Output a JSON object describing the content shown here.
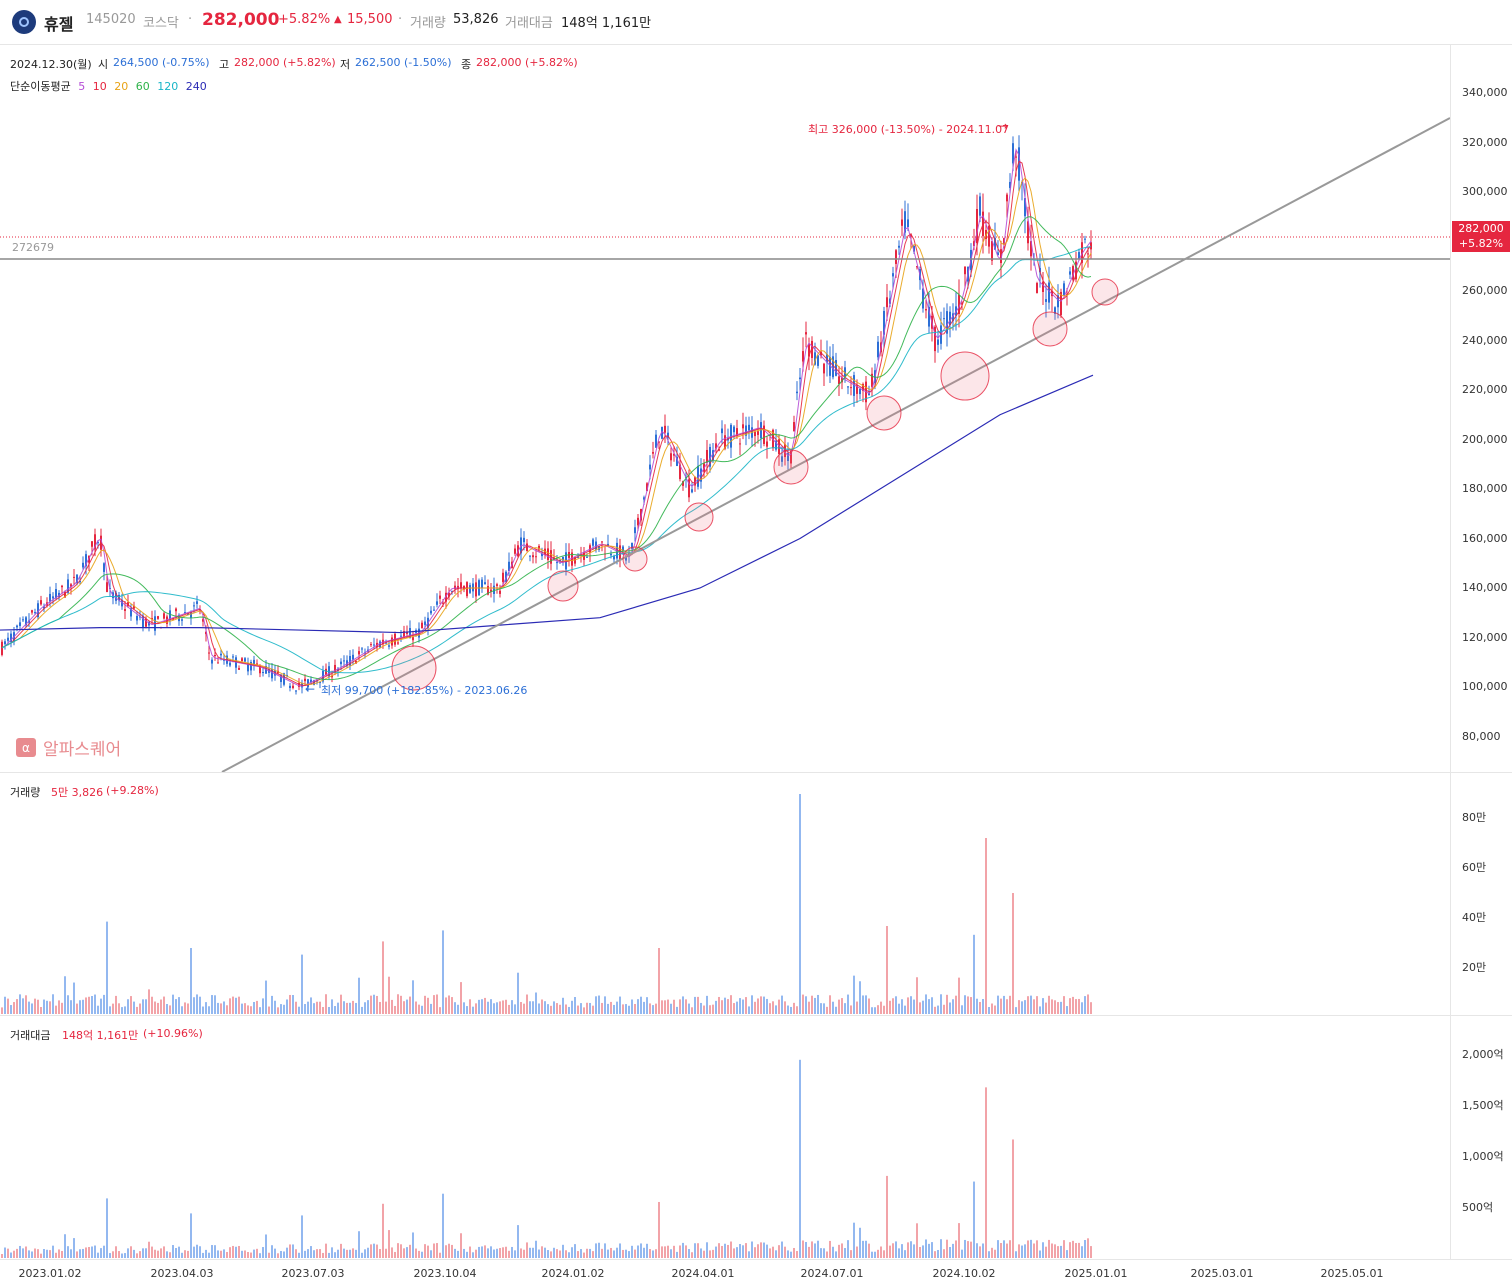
{
  "header": {
    "name": "휴젤",
    "code": "145020",
    "market": "코스닥",
    "price": "282,000",
    "change_pct": "+5.82%",
    "change_abs": "15,500",
    "volume_label": "거래량",
    "volume": "53,826",
    "amount_label": "거래대금",
    "amount": "148억 1,161만"
  },
  "ohlc": {
    "date": "2024.12.30(월)",
    "open_label": "시",
    "open": "264,500 (-0.75%)",
    "high_label": "고",
    "high": "282,000 (+5.82%)",
    "low_label": "저",
    "low": "262,500 (-1.50%)",
    "close_label": "종",
    "close": "282,000 (+5.82%)"
  },
  "ma_legend": {
    "label": "단순이동평균",
    "periods": [
      {
        "text": "5",
        "color": "#b54cd6"
      },
      {
        "text": "10",
        "color": "#e5263f"
      },
      {
        "text": "20",
        "color": "#e8a317"
      },
      {
        "text": "60",
        "color": "#2fb34a"
      },
      {
        "text": "120",
        "color": "#19b5c7"
      },
      {
        "text": "240",
        "color": "#2b2bb5"
      }
    ]
  },
  "annotations": {
    "high": "최고 326,000 (-13.50%) - 2024.11.07",
    "low": "최저 99,700 (+182.85%) - 2023.06.26",
    "level_line": "272679",
    "watermark": "알파스퀘어",
    "current_price_tag": "282,000",
    "current_change_tag": "+5.82%"
  },
  "price_axis": [
    "340,000",
    "320,000",
    "300,000",
    "280,000",
    "260,000",
    "240,000",
    "220,000",
    "200,000",
    "180,000",
    "160,000",
    "140,000",
    "120,000",
    "100,000",
    "80,000"
  ],
  "volume_panel": {
    "label": "거래량",
    "value": "5만 3,826",
    "change": "(+9.28%)",
    "axis": [
      "80만",
      "60만",
      "40만",
      "20만"
    ]
  },
  "amount_panel": {
    "label": "거래대금",
    "value": "148억 1,161만",
    "change": "(+10.96%)",
    "axis": [
      "2,000억",
      "1,500억",
      "1,000억",
      "500억"
    ]
  },
  "x_axis": [
    "2023.01.02",
    "2023.04.03",
    "2023.07.03",
    "2023.10.04",
    "2024.01.02",
    "2024.04.01",
    "2024.07.01",
    "2024.10.02",
    "2025.01.01",
    "2025.03.01",
    "2025.05.01"
  ],
  "colors": {
    "up": "#e5263f",
    "down": "#2c6fd6",
    "vol_up": "#f2a3a8",
    "vol_down": "#93b8f0",
    "trend": "#999999"
  }
}
